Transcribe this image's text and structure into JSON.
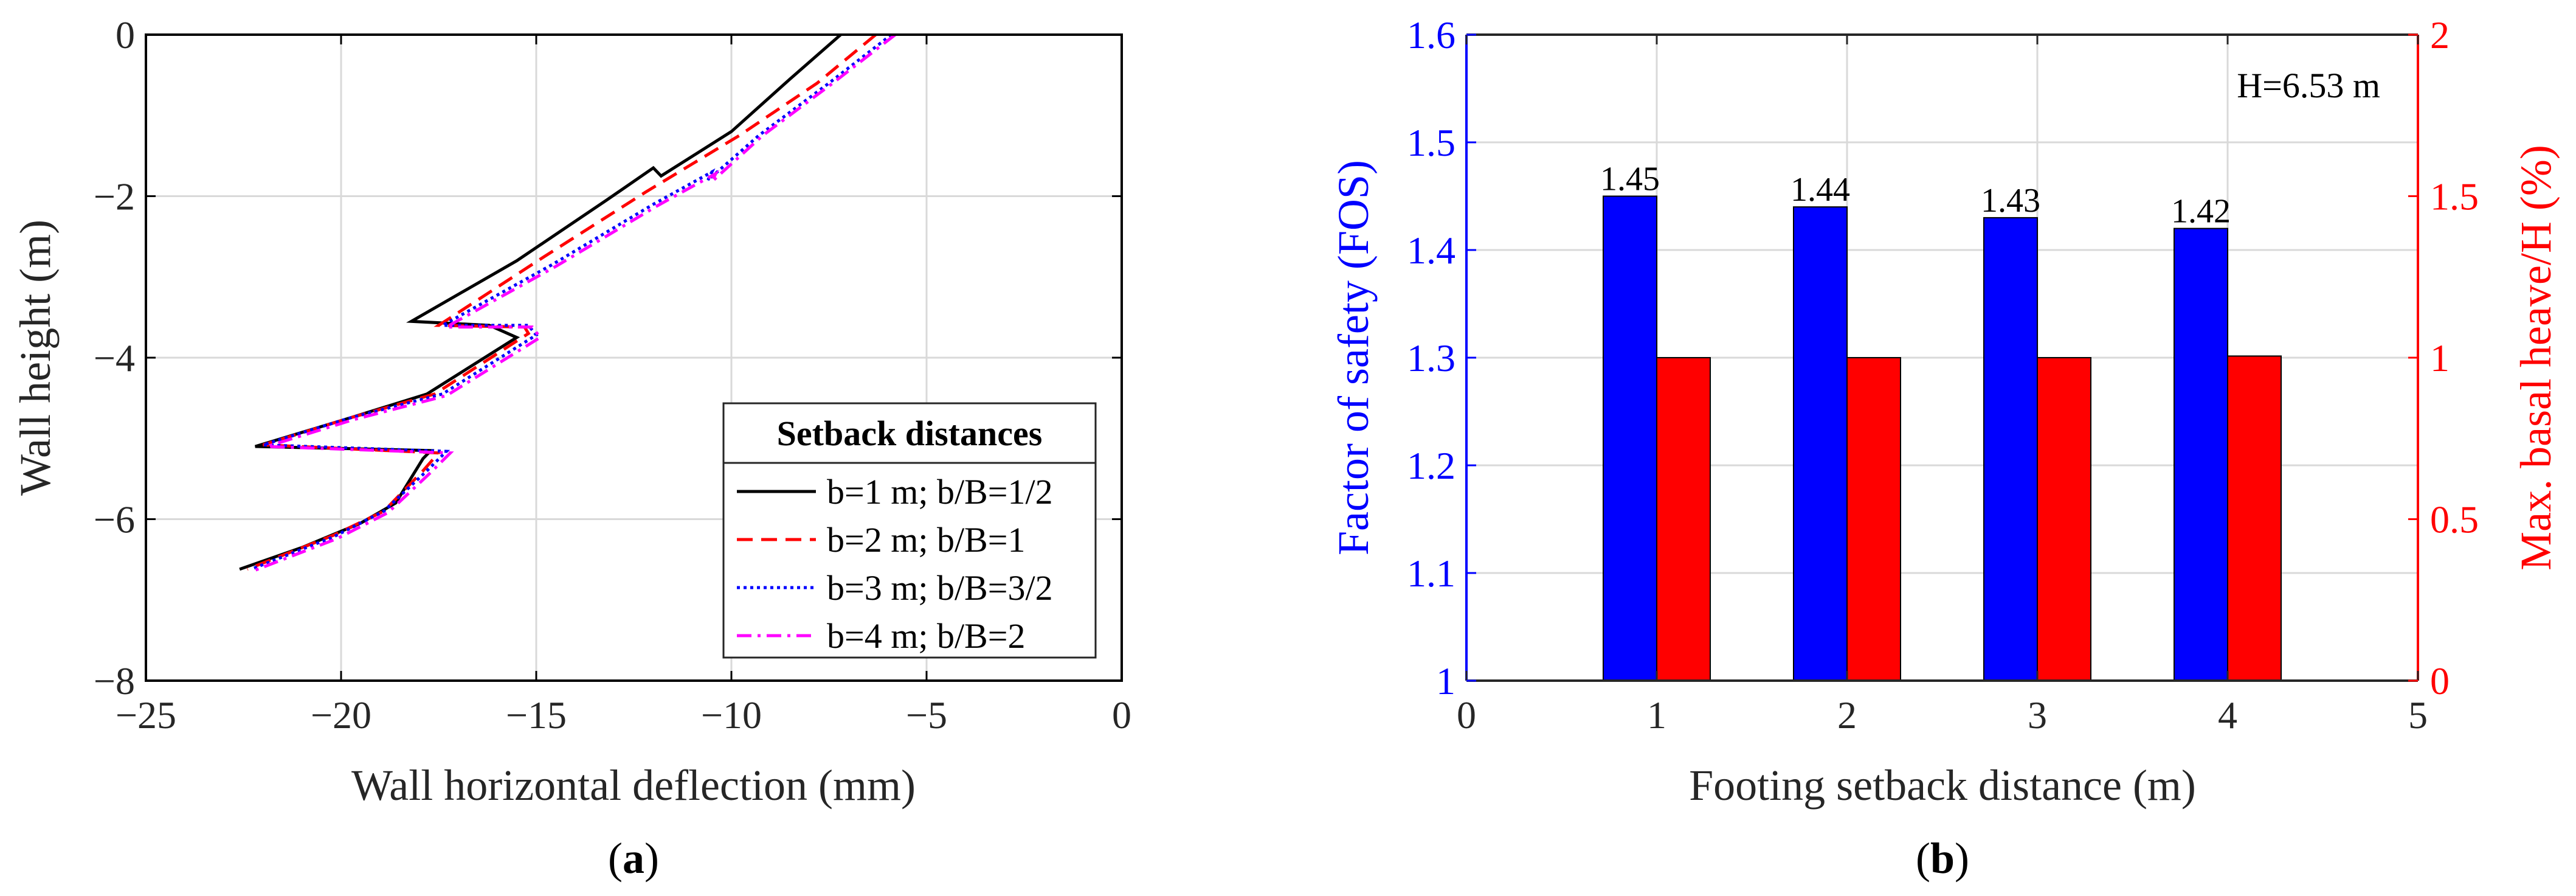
{
  "chart_data": [
    {
      "type": "line",
      "panel_label": "(a)",
      "panel_label_letter": "a",
      "xlabel": "Wall horizontal deflection (mm)",
      "ylabel": "Wall height (m)",
      "xlim": [
        -25,
        0
      ],
      "ylim": [
        -8,
        0
      ],
      "xticks": [
        -25,
        -20,
        -15,
        -10,
        -5,
        0
      ],
      "yticks": [
        -8,
        -6,
        -4,
        -2,
        0
      ],
      "xtick_labels": [
        "−25",
        "−20",
        "−15",
        "−10",
        "−5",
        "0"
      ],
      "ytick_labels": [
        "−8",
        "−6",
        "−4",
        "−2",
        "0"
      ],
      "grid": true,
      "legend": {
        "title": "Setback distances",
        "position": "bottom-right"
      },
      "series": [
        {
          "name": "b=1 m; b/B=1/2",
          "color": "#000000",
          "dash": "solid",
          "x": [
            -7.2,
            -8.5,
            -10.0,
            -11.8,
            -12.0,
            -13.2,
            -15.5,
            -18.2,
            -16.2,
            -15.5,
            -17.8,
            -19.8,
            -22.2,
            -17.7,
            -17.9,
            -18.6,
            -19.5,
            -21.0,
            -22.6
          ],
          "y": [
            0,
            -0.55,
            -1.2,
            -1.75,
            -1.65,
            -2.05,
            -2.8,
            -3.55,
            -3.6,
            -3.75,
            -4.45,
            -4.75,
            -5.1,
            -5.15,
            -5.25,
            -5.8,
            -6.05,
            -6.35,
            -6.62
          ]
        },
        {
          "name": "b=2 m; b/B=1",
          "color": "#ff0000",
          "dash": "dashed",
          "x": [
            -6.3,
            -7.8,
            -9.8,
            -12.2,
            -14.8,
            -17.5,
            -15.3,
            -15.2,
            -17.6,
            -19.8,
            -22.0,
            -17.5,
            -17.9,
            -18.9,
            -20.2,
            -22.4
          ],
          "y": [
            0,
            -0.6,
            -1.25,
            -1.95,
            -2.75,
            -3.6,
            -3.62,
            -3.7,
            -4.45,
            -4.75,
            -5.08,
            -5.18,
            -5.4,
            -5.9,
            -6.2,
            -6.62
          ]
        },
        {
          "name": "b=3 m; b/B=3/2",
          "color": "#0000ff",
          "dash": "dotted",
          "x": [
            -5.9,
            -7.5,
            -9.3,
            -10.6,
            -10.5,
            -12.0,
            -14.6,
            -17.4,
            -15.2,
            -15.0,
            -17.4,
            -19.8,
            -22.0,
            -17.3,
            -17.8,
            -18.9,
            -20.2,
            -22.3
          ],
          "y": [
            0,
            -0.6,
            -1.25,
            -1.8,
            -1.7,
            -2.1,
            -2.85,
            -3.6,
            -3.6,
            -3.72,
            -4.45,
            -4.75,
            -5.08,
            -5.16,
            -5.4,
            -5.9,
            -6.22,
            -6.62
          ]
        },
        {
          "name": "b=4 m; b/B=2",
          "color": "#ff00ff",
          "dash": "dashdot",
          "x": [
            -5.8,
            -7.4,
            -9.2,
            -10.5,
            -10.4,
            -11.9,
            -14.5,
            -17.3,
            -15.1,
            -14.9,
            -17.3,
            -19.7,
            -21.9,
            -17.2,
            -17.7,
            -18.8,
            -20.1,
            -22.3
          ],
          "y": [
            0,
            -0.6,
            -1.25,
            -1.82,
            -1.72,
            -2.12,
            -2.87,
            -3.62,
            -3.62,
            -3.75,
            -4.47,
            -4.77,
            -5.1,
            -5.18,
            -5.42,
            -5.92,
            -6.24,
            -6.65
          ]
        }
      ]
    },
    {
      "type": "bar",
      "panel_label": "(b)",
      "panel_label_letter": "b",
      "xlabel": "Footing setback distance (m)",
      "ylabel": "Factor of safety (FOS)",
      "ylabel_right": "Max. basal heave/H (%)",
      "annotation": "H=6.53 m",
      "categories": [
        1,
        2,
        3,
        4
      ],
      "xlim": [
        0,
        5
      ],
      "xticks": [
        0,
        1,
        2,
        3,
        4,
        5
      ],
      "xtick_labels": [
        "0",
        "1",
        "2",
        "3",
        "4",
        "5"
      ],
      "ylim": [
        1,
        1.6
      ],
      "yticks": [
        1,
        1.1,
        1.2,
        1.3,
        1.4,
        1.5,
        1.6
      ],
      "ytick_labels": [
        "1",
        "1.1",
        "1.2",
        "1.3",
        "1.4",
        "1.5",
        "1.6"
      ],
      "ylim_right": [
        0,
        2
      ],
      "yticks_right": [
        0,
        0.5,
        1,
        1.5,
        2
      ],
      "ytick_labels_right": [
        "0",
        "0.5",
        "1",
        "1.5",
        "2"
      ],
      "grid": true,
      "left_axis_color": "#0000ff",
      "right_axis_color": "#ff0000",
      "series": [
        {
          "name": "Factor of safety (FOS)",
          "axis": "left",
          "color": "#0000ff",
          "values": [
            1.45,
            1.44,
            1.43,
            1.42
          ],
          "labels": [
            "1.45",
            "1.44",
            "1.43",
            "1.42"
          ]
        },
        {
          "name": "Max. basal heave/H (%)",
          "axis": "right",
          "color": "#ff0000",
          "values": [
            1.0,
            1.0,
            1.0,
            1.005
          ]
        }
      ]
    }
  ]
}
